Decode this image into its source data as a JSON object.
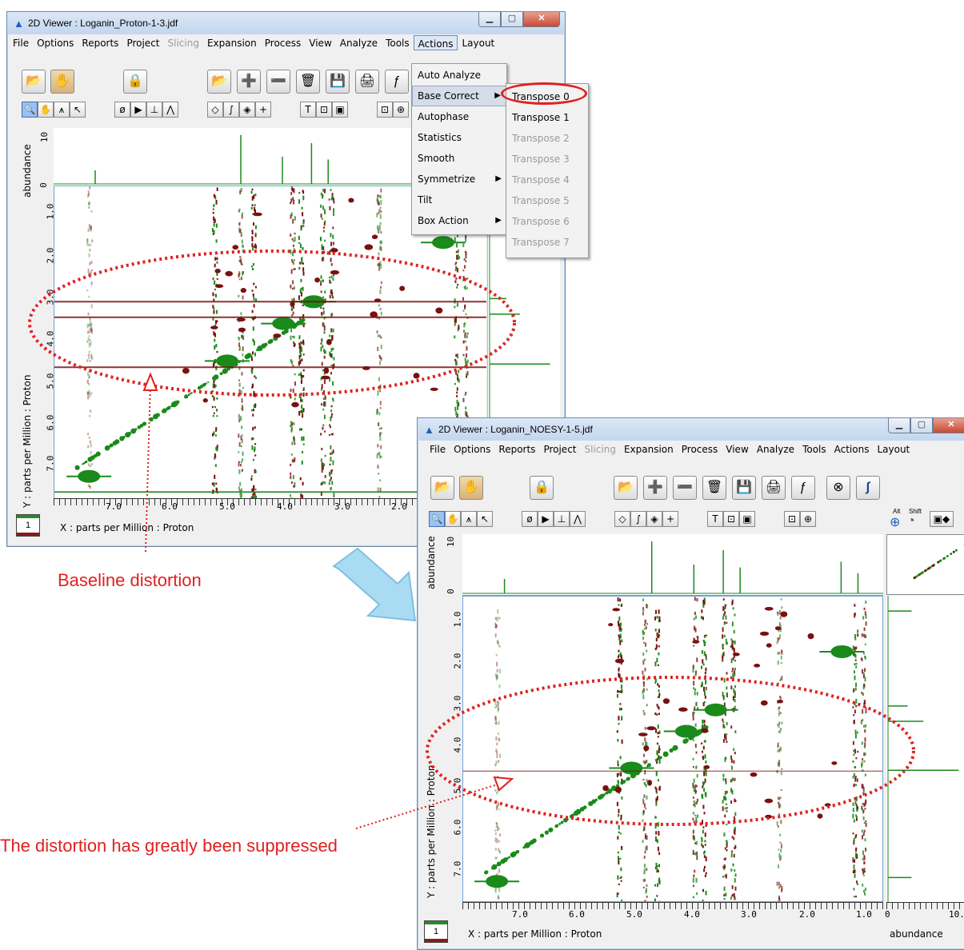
{
  "window1": {
    "title": "2D Viewer : Loganin_Proton-1-3.jdf",
    "menu": [
      "File",
      "Options",
      "Reports",
      "Project",
      "Slicing",
      "Expansion",
      "Process",
      "View",
      "Analyze",
      "Tools",
      "Actions",
      "Layout"
    ],
    "y_axis_label": "Y : parts per Million : Proton",
    "x_axis_label": "X : parts per Million : Proton",
    "top_axis_label": "abundance",
    "x_ticks": [
      "7.0",
      "6.0",
      "5.0",
      "4.0",
      "3.0",
      "2.0"
    ],
    "y_ticks": [
      "1.0",
      "2.0",
      "3.0",
      "4.0",
      "5.0",
      "6.0",
      "7.0"
    ],
    "top_ticks": [
      "10",
      "0"
    ],
    "layer_number": "1"
  },
  "actions_menu": {
    "items": [
      {
        "label": "Auto Analyze"
      },
      {
        "label": "Base Correct"
      },
      {
        "label": "Autophase"
      },
      {
        "label": "Statistics"
      },
      {
        "label": "Smooth"
      },
      {
        "label": "Symmetrize"
      },
      {
        "label": "Tilt"
      },
      {
        "label": "Box Action"
      }
    ],
    "submenu_arrow": "▶"
  },
  "transpose_menu": {
    "items": [
      "Transpose 0",
      "Transpose 1",
      "Transpose 2",
      "Transpose 3",
      "Transpose 4",
      "Transpose 5",
      "Transpose 6",
      "Transpose 7"
    ]
  },
  "window2": {
    "title": "2D Viewer : Loganin_NOESY-1-5.jdf",
    "menu": [
      "File",
      "Options",
      "Reports",
      "Project",
      "Slicing",
      "Expansion",
      "Process",
      "View",
      "Analyze",
      "Tools",
      "Actions",
      "Layout"
    ],
    "y_axis_label": "Y : parts per Million : Proton",
    "x_axis_label": "X : parts per Million : Proton",
    "top_axis_label": "abundance",
    "right_axis_label": "abundance",
    "x_ticks": [
      "7.0",
      "6.0",
      "5.0",
      "4.0",
      "3.0",
      "2.0",
      "1.0"
    ],
    "y_ticks": [
      "1.0",
      "2.0",
      "3.0",
      "4.0",
      "5.0",
      "6.0",
      "7.0"
    ],
    "top_ticks": [
      "10",
      "0"
    ],
    "right_ticks": [
      "0",
      "10."
    ],
    "alt_label": "Alt",
    "shift_label": "Shift",
    "layer_number": "1"
  },
  "annotations": {
    "distortion": "Baseline distortion",
    "suppressed": "The distortion has greatly been suppressed"
  },
  "colors": {
    "accent_red": "#e02020",
    "positive_peak": "#1a8a1a",
    "negative_peak": "#7a1010"
  }
}
